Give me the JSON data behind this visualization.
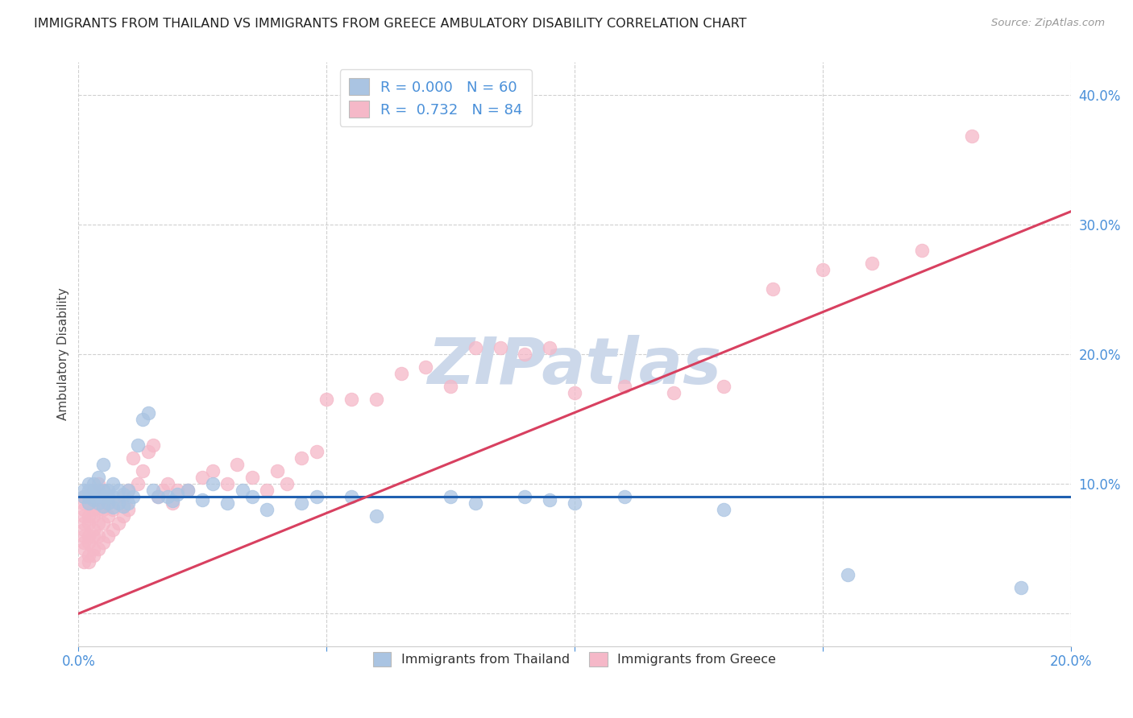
{
  "title": "IMMIGRANTS FROM THAILAND VS IMMIGRANTS FROM GREECE AMBULATORY DISABILITY CORRELATION CHART",
  "source": "Source: ZipAtlas.com",
  "ylabel": "Ambulatory Disability",
  "xlim": [
    0.0,
    0.2
  ],
  "ylim": [
    -0.025,
    0.425
  ],
  "yticks": [
    0.0,
    0.1,
    0.2,
    0.3,
    0.4
  ],
  "xticks": [
    0.0,
    0.05,
    0.1,
    0.15,
    0.2
  ],
  "xtick_labels": [
    "0.0%",
    "",
    "",
    "",
    "20.0%"
  ],
  "ytick_labels": [
    "",
    "10.0%",
    "20.0%",
    "30.0%",
    "40.0%"
  ],
  "thailand_color": "#aac4e2",
  "greece_color": "#f5b8c8",
  "thailand_line_color": "#2060b0",
  "greece_line_color": "#d84060",
  "thailand_R": "0.000",
  "thailand_N": "60",
  "greece_R": "0.732",
  "greece_N": "84",
  "watermark": "ZIPatlas",
  "watermark_color": "#ccd8ea",
  "background_color": "#ffffff",
  "grid_color": "#d0d0d0",
  "thailand_line_y": 0.09,
  "greece_line_x0": 0.0,
  "greece_line_y0": 0.0,
  "greece_line_x1": 0.2,
  "greece_line_y1": 0.31,
  "thailand_x": [
    0.001,
    0.001,
    0.002,
    0.002,
    0.002,
    0.002,
    0.003,
    0.003,
    0.003,
    0.003,
    0.003,
    0.004,
    0.004,
    0.004,
    0.004,
    0.005,
    0.005,
    0.005,
    0.005,
    0.006,
    0.006,
    0.006,
    0.007,
    0.007,
    0.007,
    0.008,
    0.008,
    0.009,
    0.009,
    0.01,
    0.01,
    0.011,
    0.012,
    0.013,
    0.014,
    0.015,
    0.016,
    0.018,
    0.019,
    0.02,
    0.022,
    0.025,
    0.027,
    0.03,
    0.033,
    0.035,
    0.038,
    0.045,
    0.048,
    0.055,
    0.06,
    0.075,
    0.08,
    0.09,
    0.095,
    0.1,
    0.11,
    0.13,
    0.155,
    0.19
  ],
  "thailand_y": [
    0.09,
    0.095,
    0.085,
    0.09,
    0.095,
    0.1,
    0.088,
    0.09,
    0.093,
    0.095,
    0.1,
    0.085,
    0.09,
    0.095,
    0.105,
    0.083,
    0.09,
    0.095,
    0.115,
    0.085,
    0.09,
    0.095,
    0.082,
    0.09,
    0.1,
    0.085,
    0.095,
    0.083,
    0.092,
    0.085,
    0.095,
    0.09,
    0.13,
    0.15,
    0.155,
    0.095,
    0.09,
    0.09,
    0.087,
    0.092,
    0.095,
    0.088,
    0.1,
    0.085,
    0.095,
    0.09,
    0.08,
    0.085,
    0.09,
    0.09,
    0.075,
    0.09,
    0.085,
    0.09,
    0.088,
    0.085,
    0.09,
    0.08,
    0.03,
    0.02
  ],
  "greece_x": [
    0.001,
    0.001,
    0.001,
    0.001,
    0.001,
    0.001,
    0.001,
    0.001,
    0.001,
    0.001,
    0.002,
    0.002,
    0.002,
    0.002,
    0.002,
    0.002,
    0.002,
    0.003,
    0.003,
    0.003,
    0.003,
    0.003,
    0.003,
    0.003,
    0.004,
    0.004,
    0.004,
    0.004,
    0.004,
    0.005,
    0.005,
    0.005,
    0.005,
    0.006,
    0.006,
    0.006,
    0.007,
    0.007,
    0.008,
    0.008,
    0.009,
    0.009,
    0.01,
    0.01,
    0.011,
    0.012,
    0.013,
    0.014,
    0.015,
    0.016,
    0.017,
    0.018,
    0.019,
    0.02,
    0.022,
    0.025,
    0.027,
    0.03,
    0.032,
    0.035,
    0.038,
    0.04,
    0.042,
    0.045,
    0.048,
    0.05,
    0.055,
    0.06,
    0.065,
    0.07,
    0.075,
    0.08,
    0.085,
    0.09,
    0.095,
    0.1,
    0.11,
    0.12,
    0.13,
    0.14,
    0.15,
    0.16,
    0.17,
    0.18
  ],
  "greece_y": [
    0.04,
    0.05,
    0.055,
    0.06,
    0.065,
    0.07,
    0.075,
    0.08,
    0.085,
    0.09,
    0.04,
    0.045,
    0.055,
    0.06,
    0.07,
    0.075,
    0.085,
    0.045,
    0.05,
    0.06,
    0.065,
    0.075,
    0.08,
    0.095,
    0.05,
    0.06,
    0.07,
    0.08,
    0.1,
    0.055,
    0.07,
    0.08,
    0.095,
    0.06,
    0.075,
    0.085,
    0.065,
    0.08,
    0.07,
    0.085,
    0.075,
    0.09,
    0.08,
    0.095,
    0.12,
    0.1,
    0.11,
    0.125,
    0.13,
    0.09,
    0.095,
    0.1,
    0.085,
    0.095,
    0.095,
    0.105,
    0.11,
    0.1,
    0.115,
    0.105,
    0.095,
    0.11,
    0.1,
    0.12,
    0.125,
    0.165,
    0.165,
    0.165,
    0.185,
    0.19,
    0.175,
    0.205,
    0.205,
    0.2,
    0.205,
    0.17,
    0.175,
    0.17,
    0.175,
    0.25,
    0.265,
    0.27,
    0.28,
    0.368
  ]
}
